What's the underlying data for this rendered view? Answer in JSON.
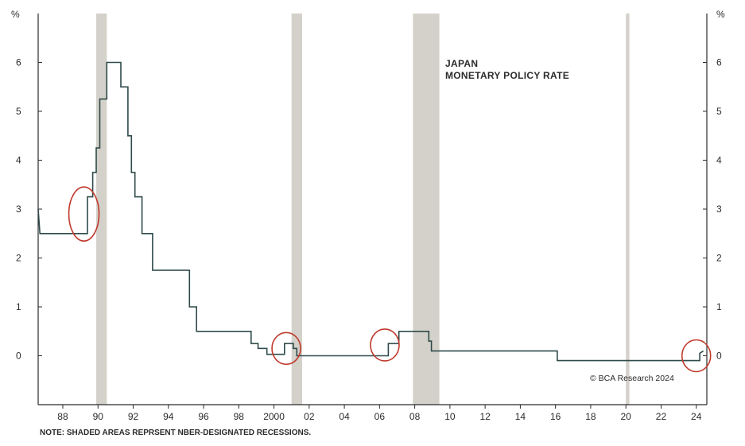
{
  "chart_data": {
    "type": "line",
    "title": "JAPAN\nMONETARY POLICY RATE",
    "title_lines": [
      "JAPAN",
      "MONETARY POLICY RATE"
    ],
    "y_unit_left": "%",
    "y_unit_right": "%",
    "ylim": [
      -1,
      7
    ],
    "y_ticks": [
      0,
      1,
      2,
      3,
      4,
      5,
      6
    ],
    "xlim": [
      1986.6,
      2024.6
    ],
    "x_ticks": [
      {
        "value": 1988,
        "label": "88"
      },
      {
        "value": 1990,
        "label": "90"
      },
      {
        "value": 1992,
        "label": "92"
      },
      {
        "value": 1994,
        "label": "94"
      },
      {
        "value": 1996,
        "label": "96"
      },
      {
        "value": 1998,
        "label": "98"
      },
      {
        "value": 2000,
        "label": "2000"
      },
      {
        "value": 2002,
        "label": "02"
      },
      {
        "value": 2004,
        "label": "04"
      },
      {
        "value": 2006,
        "label": "06"
      },
      {
        "value": 2008,
        "label": "08"
      },
      {
        "value": 2010,
        "label": "10"
      },
      {
        "value": 2012,
        "label": "12"
      },
      {
        "value": 2014,
        "label": "14"
      },
      {
        "value": 2016,
        "label": "16"
      },
      {
        "value": 2018,
        "label": "18"
      },
      {
        "value": 2020,
        "label": "20"
      },
      {
        "value": 2022,
        "label": "22"
      },
      {
        "value": 2024,
        "label": "24"
      }
    ],
    "grid": false,
    "series": [
      {
        "line_color": "#2f4a4a",
        "step": true,
        "points": [
          [
            1986.6,
            3.0
          ],
          [
            1986.7,
            2.5
          ],
          [
            1989.4,
            2.5
          ],
          [
            1989.4,
            3.25
          ],
          [
            1989.7,
            3.25
          ],
          [
            1989.7,
            3.75
          ],
          [
            1989.9,
            3.75
          ],
          [
            1989.9,
            4.25
          ],
          [
            1990.1,
            4.25
          ],
          [
            1990.1,
            5.25
          ],
          [
            1990.5,
            5.25
          ],
          [
            1990.5,
            6.0
          ],
          [
            1991.3,
            6.0
          ],
          [
            1991.3,
            5.5
          ],
          [
            1991.7,
            5.5
          ],
          [
            1991.7,
            4.5
          ],
          [
            1991.9,
            4.5
          ],
          [
            1991.9,
            3.75
          ],
          [
            1992.1,
            3.75
          ],
          [
            1992.1,
            3.25
          ],
          [
            1992.5,
            3.25
          ],
          [
            1992.5,
            2.5
          ],
          [
            1993.1,
            2.5
          ],
          [
            1993.1,
            1.75
          ],
          [
            1995.2,
            1.75
          ],
          [
            1995.2,
            1.0
          ],
          [
            1995.6,
            1.0
          ],
          [
            1995.6,
            0.5
          ],
          [
            1998.7,
            0.5
          ],
          [
            1998.7,
            0.25
          ],
          [
            1999.1,
            0.25
          ],
          [
            1999.1,
            0.15
          ],
          [
            1999.6,
            0.15
          ],
          [
            1999.6,
            0.03
          ],
          [
            2000.6,
            0.03
          ],
          [
            2000.6,
            0.25
          ],
          [
            2001.1,
            0.25
          ],
          [
            2001.1,
            0.15
          ],
          [
            2001.3,
            0.15
          ],
          [
            2001.3,
            0.0
          ],
          [
            2006.5,
            0.0
          ],
          [
            2006.5,
            0.25
          ],
          [
            2007.1,
            0.25
          ],
          [
            2007.1,
            0.5
          ],
          [
            2008.8,
            0.5
          ],
          [
            2008.8,
            0.3
          ],
          [
            2008.95,
            0.3
          ],
          [
            2008.95,
            0.1
          ],
          [
            2016.1,
            0.1
          ],
          [
            2016.1,
            -0.1
          ],
          [
            2024.2,
            -0.1
          ],
          [
            2024.2,
            0.05
          ],
          [
            2024.4,
            0.1
          ]
        ]
      }
    ],
    "shaded_periods": [
      [
        1989.9,
        1990.5
      ],
      [
        2001.0,
        2001.6
      ],
      [
        2007.9,
        2009.4
      ],
      [
        2020.0,
        2020.2
      ]
    ],
    "highlighted_points": [
      {
        "x": 1989.2,
        "y": 2.9
      },
      {
        "x": 2000.7,
        "y": 0.15
      },
      {
        "x": 2006.3,
        "y": 0.22
      },
      {
        "x": 2024.0,
        "y": 0.0
      }
    ],
    "annotation": "© BCA Research 2024",
    "note": "NOTE: SHADED AREAS REPRSENT NBER-DESIGNATED RECESSIONS."
  }
}
